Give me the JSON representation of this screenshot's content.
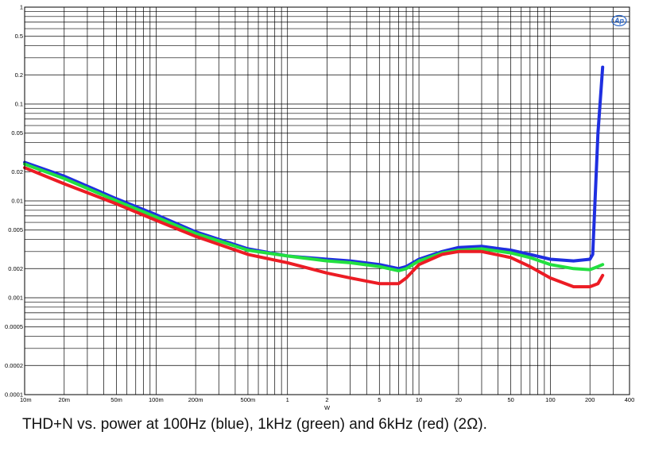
{
  "caption": "THD+N vs. power at 100Hz (blue), 1kHz (green) and 6kHz (red) (2Ω).",
  "logo": {
    "text": "Ap",
    "color": "#2b66c8"
  },
  "chart_data": {
    "type": "line",
    "title": "",
    "xlabel": "W",
    "ylabel": "",
    "x_scale": "log",
    "y_scale": "log",
    "xlim": [
      0.01,
      400
    ],
    "ylim": [
      0.0001,
      1
    ],
    "grid": true,
    "x_ticks": [
      {
        "v": 0.01,
        "label": "10m"
      },
      {
        "v": 0.02,
        "label": "20m"
      },
      {
        "v": 0.05,
        "label": "50m"
      },
      {
        "v": 0.1,
        "label": "100m"
      },
      {
        "v": 0.2,
        "label": "200m"
      },
      {
        "v": 0.5,
        "label": "500m"
      },
      {
        "v": 1,
        "label": "1"
      },
      {
        "v": 2,
        "label": "2"
      },
      {
        "v": 5,
        "label": "5"
      },
      {
        "v": 10,
        "label": "10"
      },
      {
        "v": 20,
        "label": "20"
      },
      {
        "v": 50,
        "label": "50"
      },
      {
        "v": 100,
        "label": "100"
      },
      {
        "v": 200,
        "label": "200"
      },
      {
        "v": 400,
        "label": "400"
      }
    ],
    "y_ticks": [
      {
        "v": 1,
        "label": "1"
      },
      {
        "v": 0.5,
        "label": "0.5"
      },
      {
        "v": 0.2,
        "label": "0.2"
      },
      {
        "v": 0.1,
        "label": "0.1"
      },
      {
        "v": 0.05,
        "label": "0.05"
      },
      {
        "v": 0.02,
        "label": "0.02"
      },
      {
        "v": 0.01,
        "label": "0.01"
      },
      {
        "v": 0.005,
        "label": "0.005"
      },
      {
        "v": 0.002,
        "label": "0.002"
      },
      {
        "v": 0.001,
        "label": "0.001"
      },
      {
        "v": 0.0005,
        "label": "0.0005"
      },
      {
        "v": 0.0002,
        "label": "0.0002"
      },
      {
        "v": 0.0001,
        "label": "0.0001"
      }
    ],
    "series": [
      {
        "name": "",
        "color": "#1f2fe0",
        "x": [
          0.01,
          0.02,
          0.05,
          0.1,
          0.2,
          0.5,
          1,
          2,
          3,
          5,
          7,
          8,
          10,
          15,
          20,
          30,
          50,
          70,
          100,
          150,
          200,
          210,
          230,
          250
        ],
        "y": [
          0.025,
          0.018,
          0.0105,
          0.0072,
          0.0048,
          0.0032,
          0.0027,
          0.0025,
          0.0024,
          0.0022,
          0.002,
          0.0021,
          0.0025,
          0.003,
          0.0033,
          0.0034,
          0.0031,
          0.0028,
          0.0025,
          0.0024,
          0.0025,
          0.0028,
          0.05,
          0.24
        ]
      },
      {
        "name": "",
        "color": "#22e040",
        "x": [
          0.01,
          0.02,
          0.05,
          0.1,
          0.2,
          0.5,
          1,
          2,
          3,
          5,
          7,
          8,
          10,
          15,
          20,
          30,
          50,
          70,
          100,
          150,
          200,
          230,
          250
        ],
        "y": [
          0.024,
          0.017,
          0.01,
          0.0068,
          0.0046,
          0.0031,
          0.0027,
          0.0024,
          0.0023,
          0.0021,
          0.0019,
          0.002,
          0.0024,
          0.0029,
          0.0031,
          0.0032,
          0.0029,
          0.0026,
          0.0022,
          0.002,
          0.00195,
          0.0021,
          0.0022
        ]
      },
      {
        "name": "",
        "color": "#ec1c24",
        "x": [
          0.01,
          0.02,
          0.05,
          0.1,
          0.2,
          0.5,
          1,
          2,
          3,
          5,
          7,
          8,
          10,
          15,
          20,
          30,
          50,
          70,
          100,
          150,
          200,
          230,
          250
        ],
        "y": [
          0.022,
          0.015,
          0.0093,
          0.0063,
          0.0043,
          0.0028,
          0.0023,
          0.0018,
          0.0016,
          0.0014,
          0.0014,
          0.0016,
          0.0022,
          0.0028,
          0.003,
          0.003,
          0.0026,
          0.0021,
          0.0016,
          0.0013,
          0.0013,
          0.0014,
          0.0017
        ]
      }
    ]
  }
}
